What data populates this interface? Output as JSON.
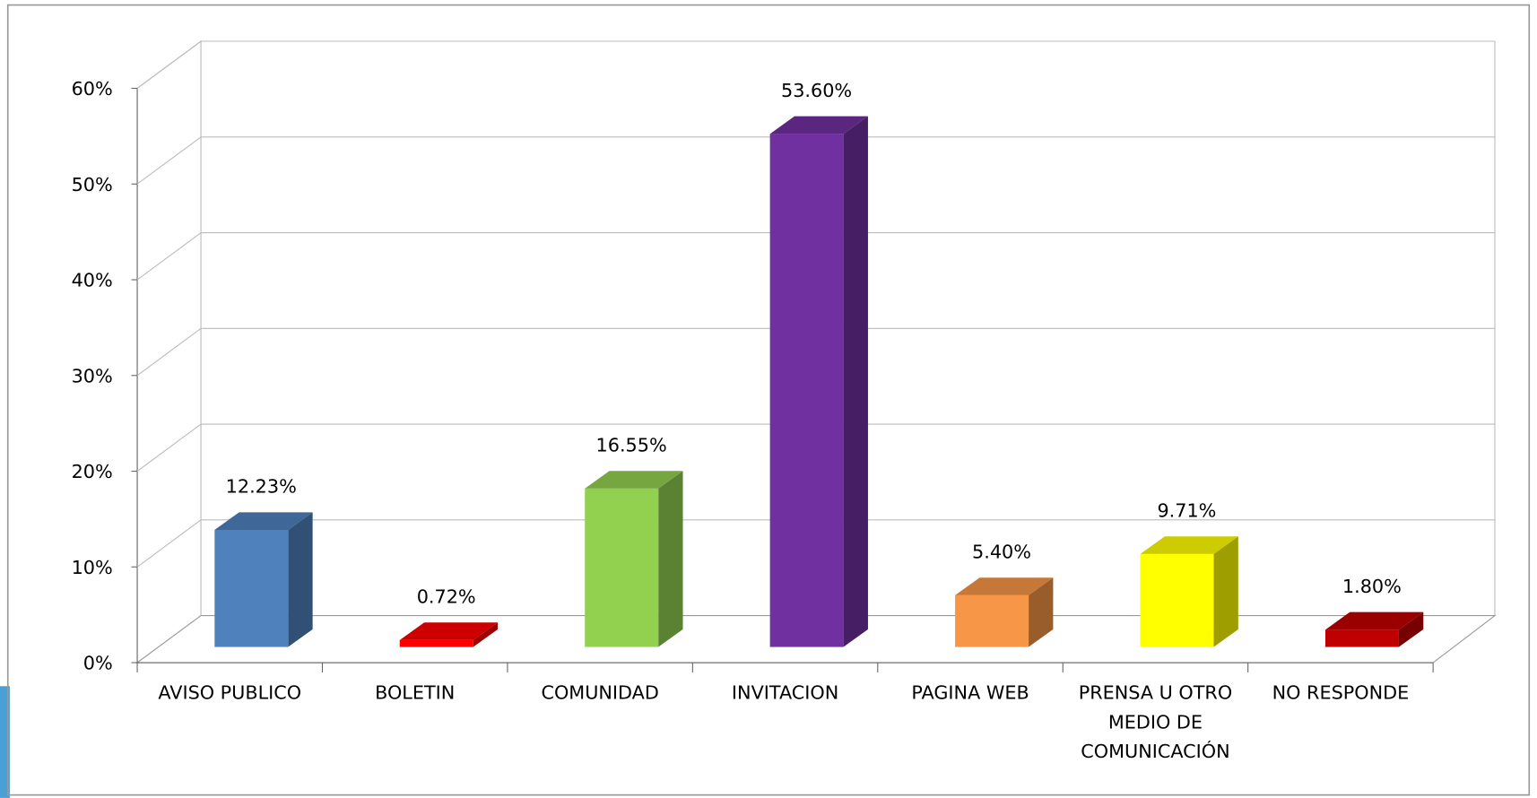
{
  "chart_data": {
    "type": "bar3d",
    "categories": [
      "AVISO PUBLICO",
      "BOLETIN",
      "COMUNIDAD",
      "INVITACION",
      "PAGINA WEB",
      "PRENSA U OTRO MEDIO DE COMUNICACIÓN",
      "NO RESPONDE"
    ],
    "values": [
      12.23,
      0.72,
      16.55,
      53.6,
      5.4,
      9.71,
      1.8
    ],
    "value_labels": [
      "12.23%",
      "0.72%",
      "16.55%",
      "53.60%",
      "5.40%",
      "9.71%",
      "1.80%"
    ],
    "colors": [
      "#4f81bd",
      "#ff0000",
      "#92d050",
      "#7030a0",
      "#f79646",
      "#ffff00",
      "#c00000"
    ],
    "ylim": [
      0,
      60
    ],
    "yticks": [
      {
        "value": 0,
        "label": "0%"
      },
      {
        "value": 10,
        "label": "10%"
      },
      {
        "value": 20,
        "label": "20%"
      },
      {
        "value": 30,
        "label": "30%"
      },
      {
        "value": 40,
        "label": "40%"
      },
      {
        "value": 50,
        "label": "50%"
      },
      {
        "value": 60,
        "label": "60%"
      }
    ],
    "grid": true
  }
}
